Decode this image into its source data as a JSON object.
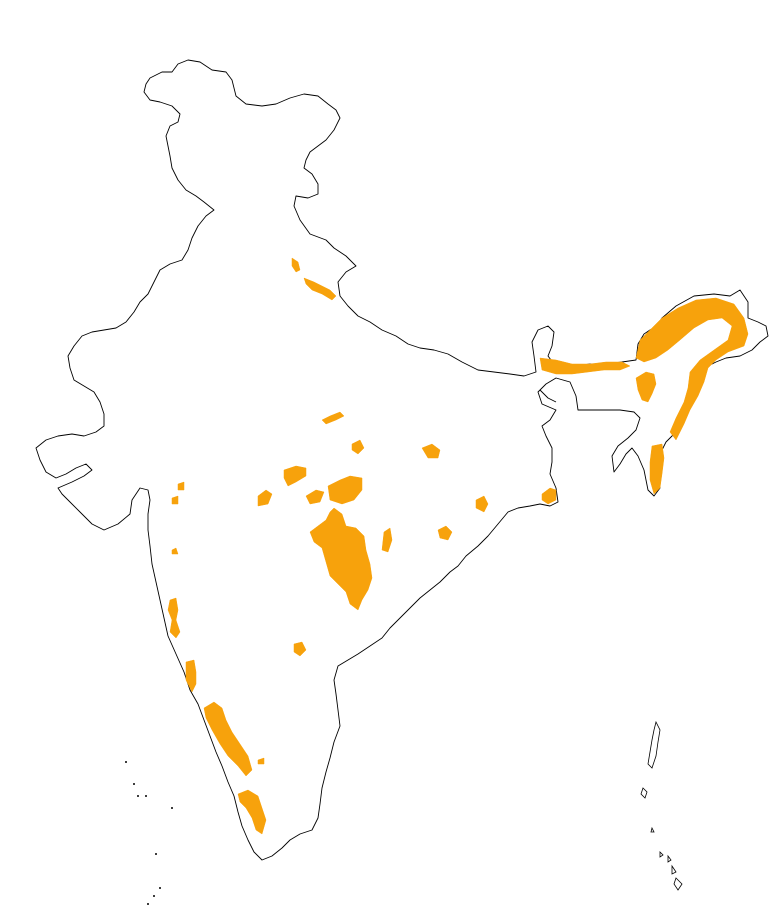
{
  "map": {
    "colors": {
      "background": "#ffffff",
      "boundary": "#000000",
      "highlight": "#f7a20c"
    },
    "legend": null,
    "title": ""
  }
}
